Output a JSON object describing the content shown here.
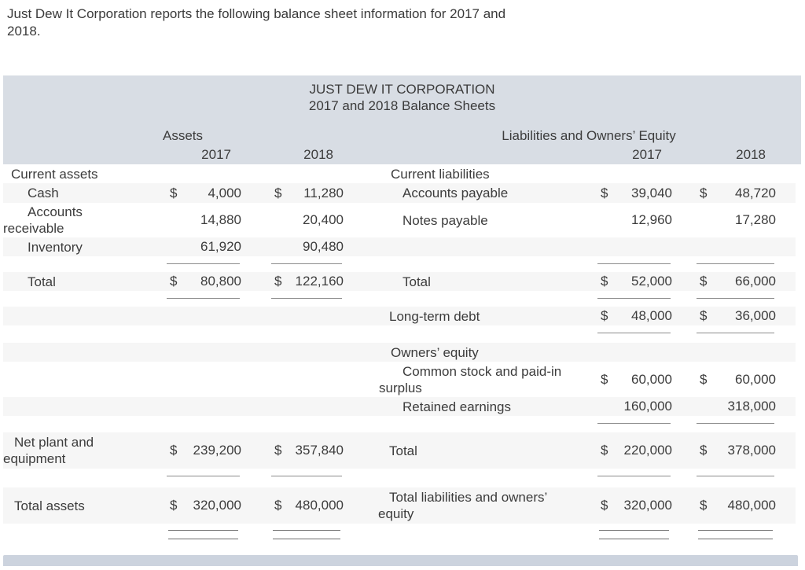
{
  "intro": {
    "line1": "Just Dew It Corporation reports the following balance sheet information for 2017 and",
    "line2": "2018."
  },
  "sheet": {
    "title": "JUST DEW IT CORPORATION",
    "subtitle": "2017 and 2018 Balance Sheets",
    "left_section_header": "Assets",
    "right_section_header": "Liabilities and Owners’ Equity",
    "years": {
      "left_2017": "2017",
      "left_2018": "2018",
      "right_2017": "2017",
      "right_2018": "2018"
    },
    "rows": {
      "current_assets": {
        "label": "Current assets"
      },
      "current_liabilities": {
        "label": "Current liabilities"
      },
      "cash": {
        "label": "Cash",
        "d1": "$",
        "v1": "4,000",
        "d2": "$",
        "v2": "11,280"
      },
      "accounts_payable": {
        "label": "Accounts payable",
        "d1": "$",
        "v1": "39,040",
        "d2": "$",
        "v2": "48,720"
      },
      "accounts_receivable": {
        "label": "Accounts receivable",
        "v1": "14,880",
        "v2": "20,400"
      },
      "notes_payable": {
        "label": "Notes payable",
        "v1": "12,960",
        "v2": "17,280"
      },
      "inventory": {
        "label": "Inventory",
        "v1": "61,920",
        "v2": "90,480"
      },
      "total_current_assets": {
        "label": "Total",
        "d1": "$",
        "v1": "80,800",
        "d2": "$",
        "v2": "122,160"
      },
      "total_current_liabilities": {
        "label": "Total",
        "d1": "$",
        "v1": "52,000",
        "d2": "$",
        "v2": "66,000"
      },
      "long_term_debt": {
        "label": "Long-term debt",
        "d1": "$",
        "v1": "48,000",
        "d2": "$",
        "v2": "36,000"
      },
      "owners_equity": {
        "label": "Owners’ equity"
      },
      "common_stock": {
        "label": "Common stock and paid-in surplus",
        "d1": "$",
        "v1": "60,000",
        "d2": "$",
        "v2": "60,000"
      },
      "retained_earnings": {
        "label": "Retained earnings",
        "v1": "160,000",
        "v2": "318,000"
      },
      "net_plant_equipment": {
        "label": "Net plant and equipment",
        "d1": "$",
        "v1": "239,200",
        "d2": "$",
        "v2": "357,840"
      },
      "total_owners_equity": {
        "label": "Total",
        "d1": "$",
        "v1": "220,000",
        "d2": "$",
        "v2": "378,000"
      },
      "total_assets": {
        "label": "Total assets",
        "d1": "$",
        "v1": "320,000",
        "d2": "$",
        "v2": "480,000"
      },
      "total_liabilities_equity": {
        "label": "Total liabilities and owners’ equity",
        "d1": "$",
        "v1": "320,000",
        "d2": "$",
        "v2": "480,000"
      }
    }
  }
}
